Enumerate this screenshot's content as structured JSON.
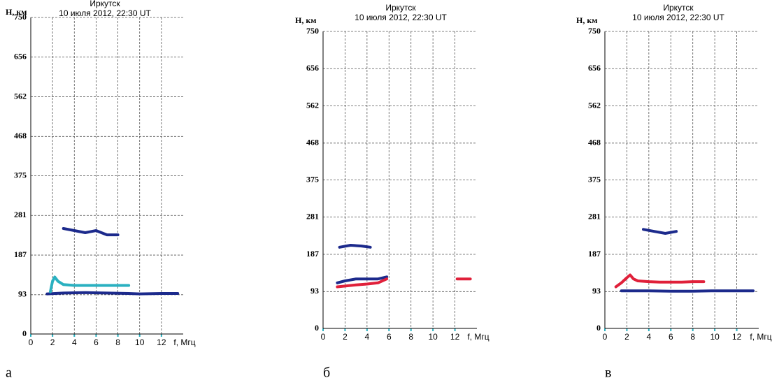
{
  "chart_data": [
    {
      "type": "line",
      "title": "Иркутск",
      "subtitle": "10 июля 2012, 22:30 UT",
      "y_label": "Н, км",
      "x_label": "f, Мгц",
      "label": "а",
      "xlim": [
        0,
        14
      ],
      "xticks": [
        0,
        2,
        4,
        6,
        8,
        10,
        12
      ],
      "ylim": [
        0,
        750
      ],
      "yticks": [
        0,
        93,
        187,
        281,
        375,
        468,
        562,
        656,
        750
      ],
      "grid": true,
      "series": [
        {
          "color": "#1c2a8c",
          "x": [
            1.5,
            3,
            5,
            7,
            9,
            10,
            12,
            13.5
          ],
          "values": [
            95,
            97,
            98,
            97,
            96,
            95,
            96,
            96
          ]
        },
        {
          "color": "#1c2a8c",
          "x": [
            3,
            4,
            5,
            6,
            7,
            8
          ],
          "values": [
            250,
            245,
            240,
            245,
            235,
            235
          ]
        },
        {
          "color": "#2ab0c0",
          "x": [
            1.8,
            2.0,
            2.2,
            2.5,
            3,
            4,
            5,
            6,
            7,
            8,
            9
          ],
          "values": [
            100,
            125,
            135,
            125,
            117,
            115,
            115,
            115,
            115,
            115,
            115
          ]
        }
      ]
    },
    {
      "type": "line",
      "title": "Иркутск",
      "subtitle": "10 июля 2012, 22:30 UT",
      "y_label": "Н, км",
      "x_label": "f, Мгц",
      "label": "б",
      "xlim": [
        0,
        14
      ],
      "xticks": [
        0,
        2,
        4,
        6,
        8,
        10,
        12
      ],
      "ylim": [
        0,
        750
      ],
      "yticks": [
        0,
        93,
        187,
        281,
        375,
        468,
        562,
        656,
        750
      ],
      "grid": true,
      "series": [
        {
          "color": "#1c2a8c",
          "x": [
            1.5,
            2.5,
            3.5,
            4.3
          ],
          "values": [
            205,
            210,
            208,
            205
          ]
        },
        {
          "color": "#1c2a8c",
          "x": [
            1.3,
            2,
            3,
            4,
            5,
            5.8
          ],
          "values": [
            115,
            120,
            125,
            125,
            125,
            130
          ]
        },
        {
          "color": "#e0203a",
          "x": [
            1.3,
            2,
            3,
            4,
            5,
            5.8,
            6,
            12.2,
            13.4
          ],
          "values": [
            105,
            107,
            110,
            112,
            115,
            125,
            null,
            125,
            125
          ]
        }
      ]
    },
    {
      "type": "line",
      "title": "Иркутск",
      "subtitle": "10 июля 2012, 22:30 UT",
      "y_label": "Н, км",
      "x_label": "f, Мгц",
      "label": "в",
      "xlim": [
        0,
        14
      ],
      "xticks": [
        0,
        2,
        4,
        6,
        8,
        10,
        12
      ],
      "ylim": [
        0,
        750
      ],
      "yticks": [
        0,
        93,
        187,
        281,
        375,
        468,
        562,
        656,
        750
      ],
      "grid": true,
      "series": [
        {
          "color": "#1c2a8c",
          "x": [
            3.5,
            4.5,
            5.5,
            6.5
          ],
          "values": [
            250,
            245,
            240,
            245
          ]
        },
        {
          "color": "#1c2a8c",
          "x": [
            1.5,
            4,
            6,
            8,
            10,
            13.5
          ],
          "values": [
            95,
            95,
            94,
            94,
            95,
            95
          ]
        },
        {
          "color": "#e0203a",
          "x": [
            1,
            1.5,
            2,
            2.3,
            2.6,
            3,
            4,
            5,
            6,
            7,
            8,
            9
          ],
          "values": [
            105,
            115,
            128,
            135,
            125,
            120,
            118,
            117,
            117,
            117,
            118,
            118
          ]
        }
      ]
    }
  ]
}
